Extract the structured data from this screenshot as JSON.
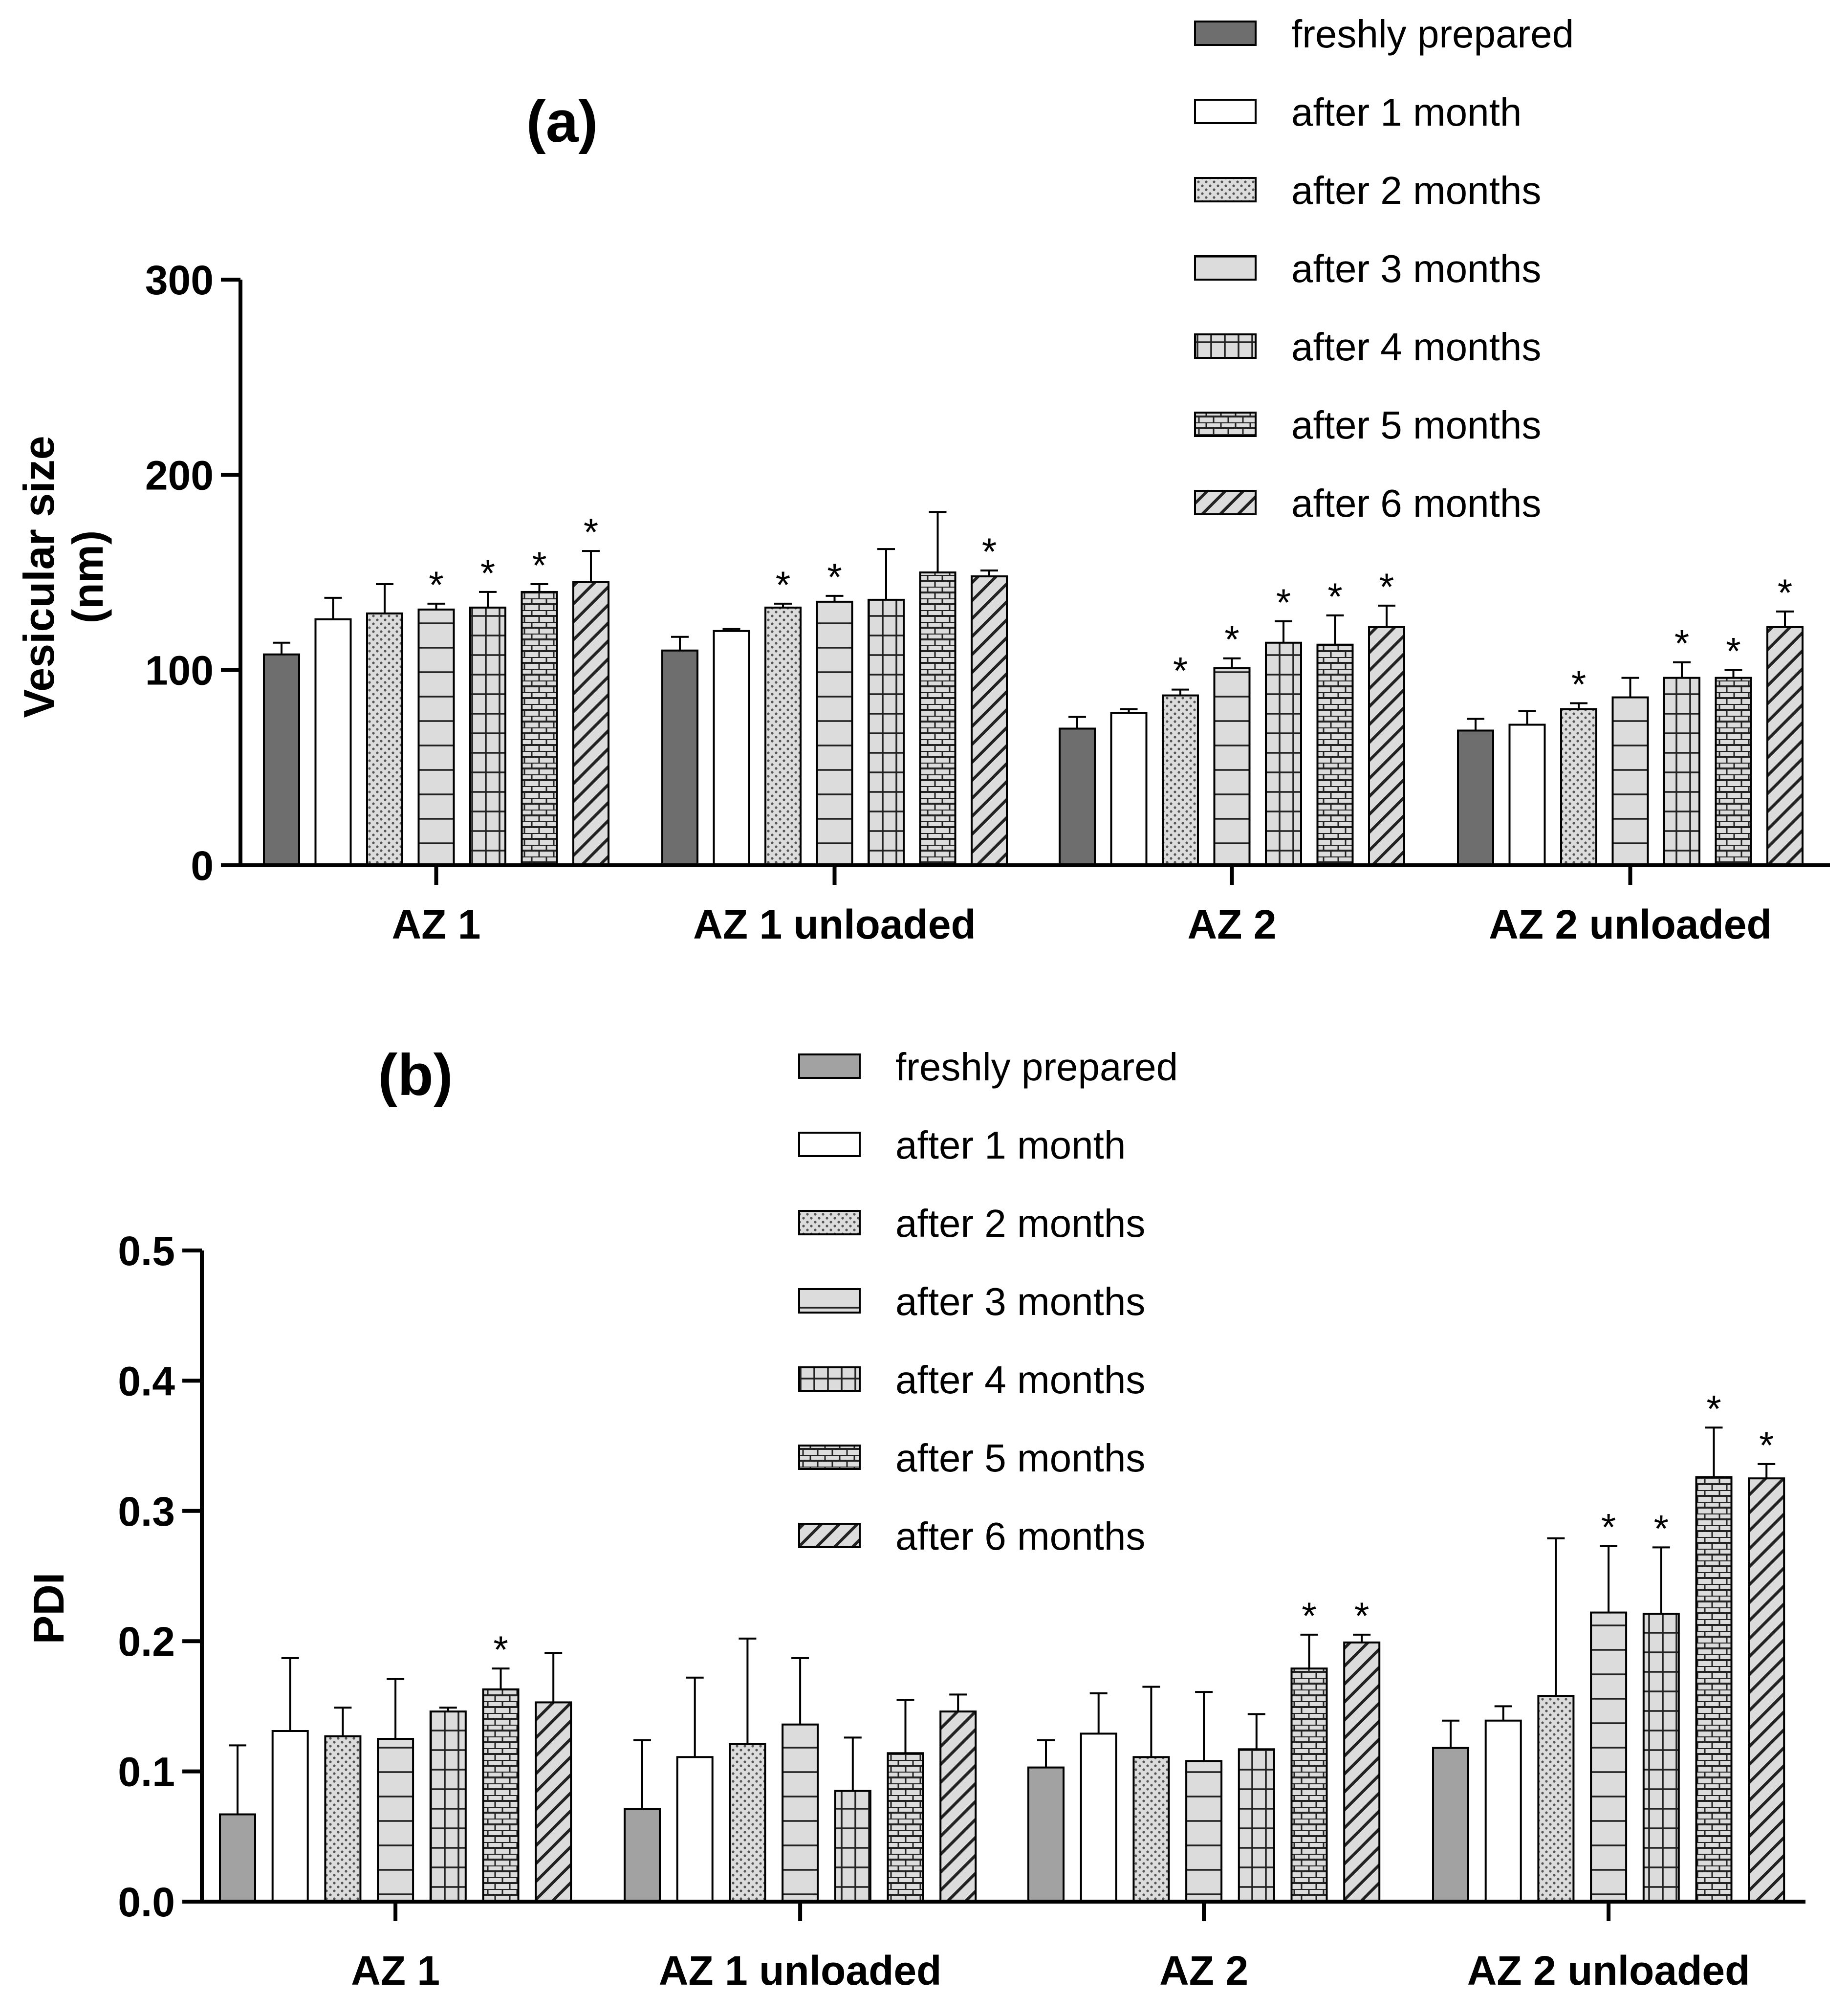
{
  "panels": {
    "a": {
      "label": "(a)",
      "ylabel_line1": "Vesicular size",
      "ylabel_line2": "(nm)"
    },
    "b": {
      "label": "(b)",
      "ylabel": "PDI"
    }
  },
  "legend": [
    {
      "label": "freshly prepared",
      "pattern": "solid-dark"
    },
    {
      "label": "after 1 month",
      "pattern": "open"
    },
    {
      "label": "after 2 months",
      "pattern": "dots"
    },
    {
      "label": "after 3 months",
      "pattern": "horizontal-lines"
    },
    {
      "label": "after 4 months",
      "pattern": "grid"
    },
    {
      "label": "after 5 months",
      "pattern": "bricks"
    },
    {
      "label": "after 6 months",
      "pattern": "diagonal"
    }
  ],
  "chart_data": [
    {
      "type": "bar",
      "title": "(a)",
      "ylabel": "Vesicular size (nm)",
      "ylim": [
        0,
        300
      ],
      "yticks": [
        "0",
        "100",
        "200",
        "300"
      ],
      "categories": [
        "AZ 1",
        "AZ 1 unloaded",
        "AZ 2",
        "AZ 2 unloaded"
      ],
      "colors": {
        "freshly prepared": "#6e6e6e",
        "others": "#dcdcdc"
      },
      "series": [
        {
          "name": "freshly prepared",
          "values": [
            108,
            110,
            70,
            69
          ],
          "errors": [
            6,
            7,
            6,
            6
          ],
          "sig": [
            false,
            false,
            false,
            false
          ]
        },
        {
          "name": "after 1 month",
          "values": [
            126,
            120,
            78,
            72
          ],
          "errors": [
            11,
            1,
            2,
            7
          ],
          "sig": [
            false,
            false,
            false,
            false
          ]
        },
        {
          "name": "after 2 months",
          "values": [
            129,
            132,
            87,
            80
          ],
          "errors": [
            15,
            2,
            3,
            3
          ],
          "sig": [
            false,
            true,
            true,
            true
          ]
        },
        {
          "name": "after 3 months",
          "values": [
            131,
            135,
            101,
            86
          ],
          "errors": [
            3,
            3,
            5,
            10
          ],
          "sig": [
            true,
            true,
            true,
            false
          ]
        },
        {
          "name": "after 4 months",
          "values": [
            132,
            136,
            114,
            96
          ],
          "errors": [
            8,
            26,
            11,
            8
          ],
          "sig": [
            true,
            false,
            true,
            true
          ]
        },
        {
          "name": "after 5 months",
          "values": [
            140,
            150,
            113,
            96
          ],
          "errors": [
            4,
            31,
            15,
            4
          ],
          "sig": [
            true,
            false,
            true,
            true
          ]
        },
        {
          "name": "after 6 months",
          "values": [
            145,
            148,
            122,
            122
          ],
          "errors": [
            16,
            3,
            11,
            8
          ],
          "sig": [
            true,
            true,
            true,
            true
          ]
        }
      ]
    },
    {
      "type": "bar",
      "title": "(b)",
      "ylabel": "PDI",
      "ylim": [
        0,
        0.5
      ],
      "yticks": [
        "0.0",
        "0.1",
        "0.2",
        "0.3",
        "0.4",
        "0.5"
      ],
      "categories": [
        "AZ 1",
        "AZ 1 unloaded",
        "AZ 2",
        "AZ 2 unloaded"
      ],
      "colors": {
        "freshly prepared": "#a2a2a2",
        "others": "#dcdcdc"
      },
      "series": [
        {
          "name": "freshly prepared",
          "values": [
            0.067,
            0.071,
            0.103,
            0.118
          ],
          "errors": [
            0.053,
            0.053,
            0.021,
            0.021
          ],
          "sig": [
            false,
            false,
            false,
            false
          ]
        },
        {
          "name": "after 1 month",
          "values": [
            0.131,
            0.111,
            0.129,
            0.139
          ],
          "errors": [
            0.056,
            0.061,
            0.031,
            0.011
          ],
          "sig": [
            false,
            false,
            false,
            false
          ]
        },
        {
          "name": "after 2 months",
          "values": [
            0.127,
            0.121,
            0.111,
            0.158
          ],
          "errors": [
            0.022,
            0.081,
            0.054,
            0.121
          ],
          "sig": [
            false,
            false,
            false,
            false
          ]
        },
        {
          "name": "after 3 months",
          "values": [
            0.125,
            0.136,
            0.108,
            0.222
          ],
          "errors": [
            0.046,
            0.051,
            0.053,
            0.051
          ],
          "sig": [
            false,
            false,
            false,
            true
          ]
        },
        {
          "name": "after 4 months",
          "values": [
            0.146,
            0.085,
            0.117,
            0.221
          ],
          "errors": [
            0.003,
            0.041,
            0.027,
            0.051
          ],
          "sig": [
            false,
            false,
            false,
            true
          ]
        },
        {
          "name": "after 5 months",
          "values": [
            0.163,
            0.114,
            0.179,
            0.326
          ],
          "errors": [
            0.016,
            0.041,
            0.026,
            0.038
          ],
          "sig": [
            true,
            false,
            true,
            true
          ]
        },
        {
          "name": "after 6 months",
          "values": [
            0.153,
            0.146,
            0.199,
            0.325
          ],
          "errors": [
            0.038,
            0.013,
            0.006,
            0.011
          ],
          "sig": [
            false,
            false,
            true,
            true
          ]
        }
      ]
    }
  ],
  "significance_marker": "*"
}
